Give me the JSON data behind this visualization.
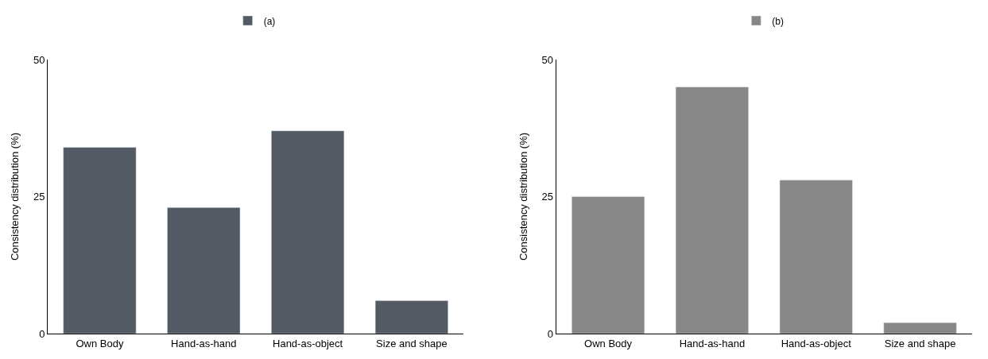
{
  "chart_data": [
    {
      "type": "bar",
      "ylabel": "Consistency distribution (%)",
      "categories": [
        "Own Body",
        "Hand-as-hand",
        "Hand-as-object",
        "Size and shape"
      ],
      "series": [
        {
          "name": "(a)",
          "color": "#535a63",
          "values": [
            34,
            23,
            37,
            6
          ]
        }
      ],
      "ylim": [
        0,
        50
      ],
      "yticks": [
        0,
        25,
        50
      ],
      "legend": "top"
    },
    {
      "type": "bar",
      "ylabel": "Consistency distribution (%)",
      "categories": [
        "Own Body",
        "Hand-as-hand",
        "Hand-as-object",
        "Size and shape"
      ],
      "series": [
        {
          "name": "(b)",
          "color": "#878787",
          "values": [
            25,
            45,
            28,
            2
          ]
        }
      ],
      "ylim": [
        0,
        50
      ],
      "yticks": [
        0,
        25,
        50
      ],
      "legend": "top"
    }
  ]
}
